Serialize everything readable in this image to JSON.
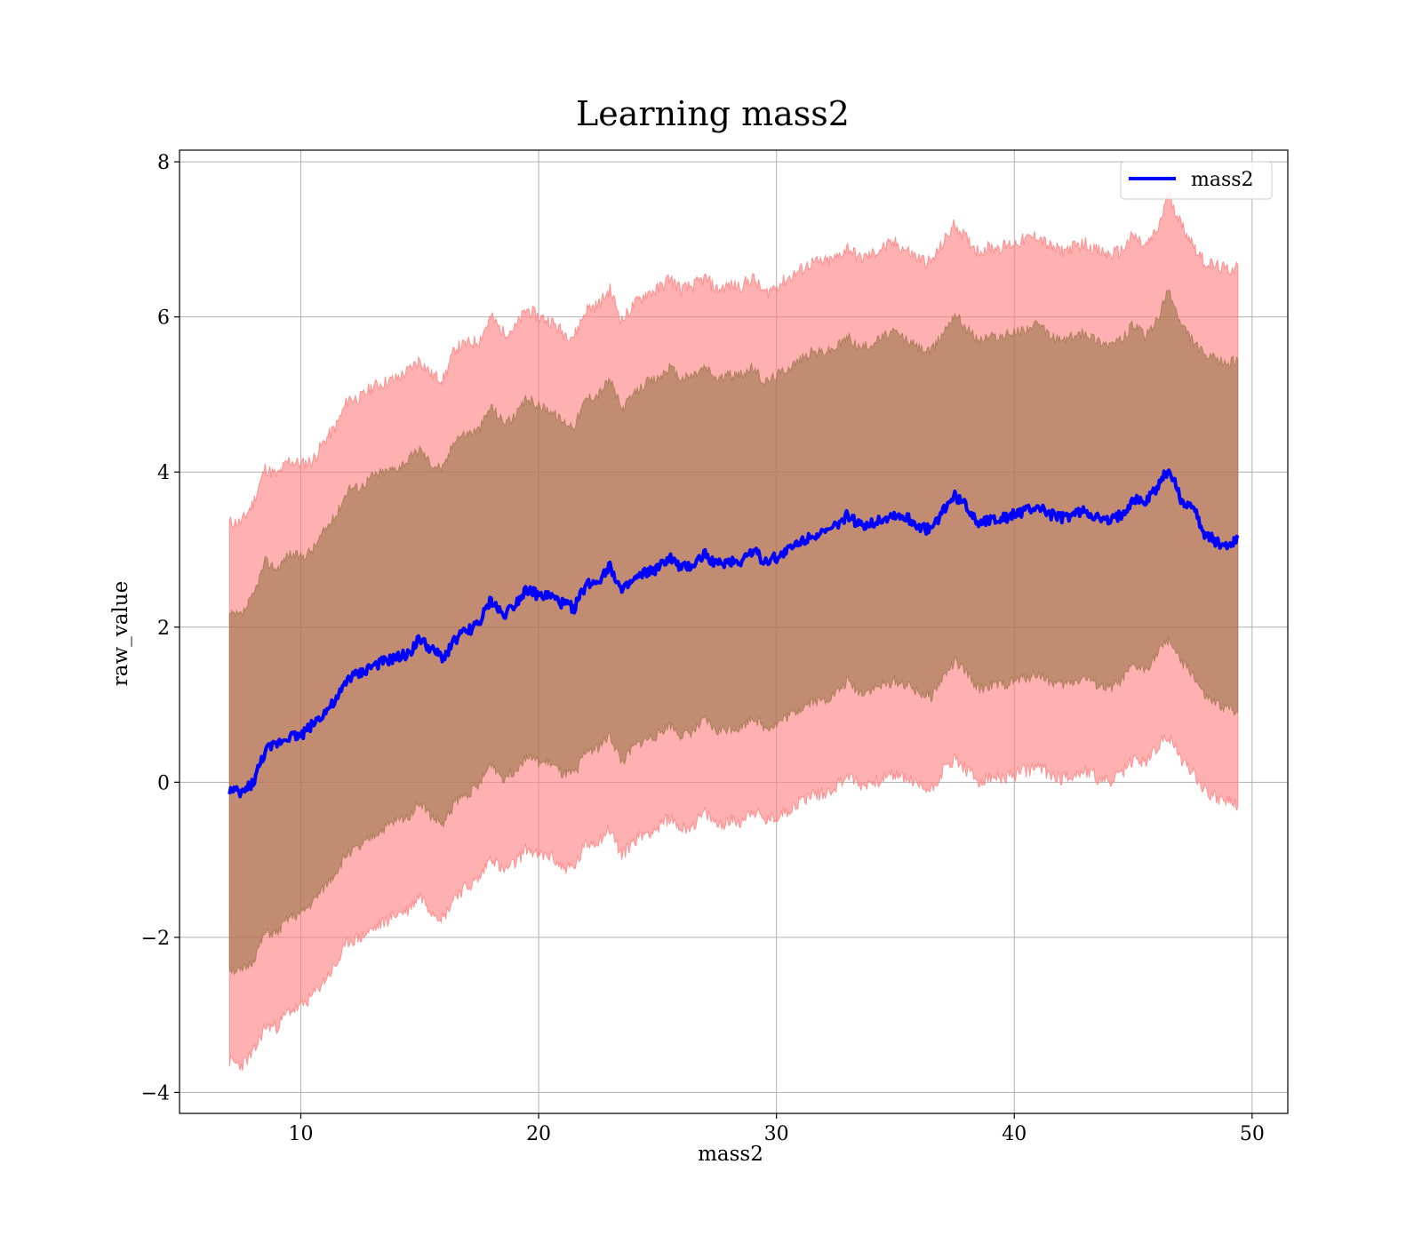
{
  "chart_data": {
    "type": "line",
    "title": "Learning mass2",
    "xlabel": "mass2",
    "ylabel": "raw_value",
    "xlim": [
      4.9,
      51.5
    ],
    "ylim": [
      -4.27,
      8.15
    ],
    "xticks": [
      10,
      20,
      30,
      40,
      50
    ],
    "yticks": [
      -4,
      -2,
      0,
      2,
      4,
      6,
      8
    ],
    "xtick_labels": [
      "10",
      "20",
      "30",
      "40",
      "50"
    ],
    "ytick_labels": [
      "−4",
      "−2",
      "0",
      "2",
      "4",
      "6",
      "8"
    ],
    "grid": true,
    "legend": {
      "position": "upper right",
      "entries": [
        "mass2"
      ]
    },
    "colors": {
      "line": "#0000ff",
      "band_outer": "#ff7f7f",
      "band_inner": "#8f6f3f"
    },
    "series": [
      {
        "name": "mass2",
        "x": [
          7.0,
          7.5,
          8.0,
          8.5,
          9.0,
          9.5,
          10.0,
          10.5,
          11.0,
          11.5,
          12.0,
          12.5,
          13.0,
          13.5,
          14.0,
          14.5,
          15.0,
          15.5,
          16.0,
          16.5,
          17.0,
          17.5,
          18.0,
          18.5,
          19.0,
          19.5,
          20.0,
          20.5,
          21.0,
          21.5,
          22.0,
          22.5,
          23.0,
          23.5,
          24.0,
          24.5,
          25.0,
          25.5,
          26.0,
          26.5,
          27.0,
          27.5,
          28.0,
          28.5,
          29.0,
          29.5,
          30.0,
          30.5,
          31.0,
          31.5,
          32.0,
          32.5,
          33.0,
          33.5,
          34.0,
          34.5,
          35.0,
          35.5,
          36.0,
          36.5,
          37.0,
          37.5,
          38.0,
          38.5,
          39.0,
          39.5,
          40.0,
          40.5,
          41.0,
          41.5,
          42.0,
          42.5,
          43.0,
          43.5,
          44.0,
          44.5,
          45.0,
          45.5,
          46.0,
          46.5,
          47.0,
          47.5,
          48.0,
          48.5,
          49.0,
          49.4
        ],
        "values": [
          -0.1,
          -0.15,
          0.0,
          0.4,
          0.5,
          0.6,
          0.6,
          0.75,
          0.9,
          1.05,
          1.35,
          1.4,
          1.5,
          1.55,
          1.6,
          1.65,
          1.85,
          1.7,
          1.6,
          1.85,
          1.95,
          2.05,
          2.35,
          2.15,
          2.3,
          2.5,
          2.4,
          2.4,
          2.3,
          2.25,
          2.55,
          2.6,
          2.8,
          2.45,
          2.6,
          2.7,
          2.75,
          2.9,
          2.75,
          2.8,
          2.95,
          2.8,
          2.85,
          2.85,
          3.0,
          2.85,
          2.9,
          3.0,
          3.1,
          3.2,
          3.2,
          3.3,
          3.45,
          3.3,
          3.35,
          3.4,
          3.45,
          3.4,
          3.3,
          3.25,
          3.5,
          3.7,
          3.55,
          3.35,
          3.4,
          3.4,
          3.45,
          3.5,
          3.55,
          3.45,
          3.4,
          3.45,
          3.5,
          3.4,
          3.35,
          3.45,
          3.65,
          3.6,
          3.8,
          4.05,
          3.65,
          3.55,
          3.2,
          3.1,
          3.05,
          3.15
        ],
        "outer_upper": [
          3.35,
          3.35,
          3.6,
          4.05,
          3.95,
          4.15,
          4.1,
          4.15,
          4.4,
          4.6,
          4.95,
          4.95,
          5.1,
          5.15,
          5.2,
          5.3,
          5.45,
          5.25,
          5.2,
          5.6,
          5.65,
          5.7,
          6.0,
          5.8,
          5.85,
          6.1,
          6.0,
          5.95,
          5.8,
          5.75,
          6.1,
          6.15,
          6.35,
          5.95,
          6.15,
          6.3,
          6.35,
          6.5,
          6.35,
          6.4,
          6.5,
          6.35,
          6.4,
          6.4,
          6.5,
          6.3,
          6.4,
          6.5,
          6.6,
          6.7,
          6.7,
          6.75,
          6.9,
          6.75,
          6.8,
          6.9,
          6.95,
          6.85,
          6.75,
          6.7,
          6.95,
          7.2,
          7.0,
          6.85,
          6.9,
          6.9,
          6.95,
          7.0,
          7.05,
          6.9,
          6.85,
          6.9,
          6.95,
          6.85,
          6.8,
          6.85,
          7.05,
          6.9,
          7.1,
          7.6,
          7.2,
          6.95,
          6.7,
          6.65,
          6.6,
          6.65
        ],
        "inner_upper": [
          2.15,
          2.15,
          2.4,
          2.85,
          2.75,
          2.95,
          2.9,
          3.0,
          3.25,
          3.45,
          3.8,
          3.8,
          3.95,
          4.0,
          4.05,
          4.15,
          4.3,
          4.1,
          4.05,
          4.45,
          4.5,
          4.55,
          4.85,
          4.65,
          4.7,
          4.95,
          4.85,
          4.8,
          4.65,
          4.6,
          4.95,
          5.0,
          5.2,
          4.8,
          5.0,
          5.15,
          5.2,
          5.35,
          5.2,
          5.25,
          5.35,
          5.2,
          5.25,
          5.25,
          5.35,
          5.15,
          5.25,
          5.35,
          5.45,
          5.55,
          5.55,
          5.6,
          5.75,
          5.6,
          5.65,
          5.75,
          5.8,
          5.7,
          5.6,
          5.55,
          5.8,
          6.05,
          5.85,
          5.7,
          5.75,
          5.75,
          5.8,
          5.85,
          5.9,
          5.75,
          5.7,
          5.75,
          5.8,
          5.7,
          5.65,
          5.7,
          5.9,
          5.75,
          5.95,
          6.35,
          5.9,
          5.7,
          5.5,
          5.45,
          5.4,
          5.45
        ],
        "inner_lower": [
          -2.4,
          -2.45,
          -2.3,
          -1.95,
          -1.95,
          -1.75,
          -1.7,
          -1.55,
          -1.35,
          -1.15,
          -0.9,
          -0.85,
          -0.7,
          -0.6,
          -0.5,
          -0.45,
          -0.25,
          -0.45,
          -0.55,
          -0.25,
          -0.15,
          -0.05,
          0.25,
          0.05,
          0.15,
          0.35,
          0.25,
          0.25,
          0.1,
          0.1,
          0.4,
          0.45,
          0.6,
          0.25,
          0.45,
          0.55,
          0.6,
          0.75,
          0.6,
          0.65,
          0.8,
          0.65,
          0.7,
          0.7,
          0.85,
          0.7,
          0.75,
          0.85,
          0.95,
          1.05,
          1.05,
          1.15,
          1.3,
          1.15,
          1.2,
          1.25,
          1.3,
          1.25,
          1.15,
          1.1,
          1.35,
          1.55,
          1.4,
          1.2,
          1.25,
          1.25,
          1.3,
          1.35,
          1.4,
          1.3,
          1.25,
          1.3,
          1.35,
          1.25,
          1.2,
          1.3,
          1.5,
          1.45,
          1.65,
          1.85,
          1.55,
          1.4,
          1.1,
          1.0,
          0.95,
          0.9
        ],
        "outer_lower": [
          -3.6,
          -3.65,
          -3.5,
          -3.15,
          -3.15,
          -2.95,
          -2.9,
          -2.75,
          -2.55,
          -2.35,
          -2.05,
          -2.0,
          -1.9,
          -1.8,
          -1.7,
          -1.65,
          -1.45,
          -1.65,
          -1.75,
          -1.45,
          -1.35,
          -1.25,
          -0.95,
          -1.15,
          -1.05,
          -0.85,
          -0.95,
          -0.95,
          -1.1,
          -1.1,
          -0.8,
          -0.75,
          -0.6,
          -0.95,
          -0.75,
          -0.65,
          -0.6,
          -0.45,
          -0.6,
          -0.55,
          -0.4,
          -0.55,
          -0.5,
          -0.5,
          -0.35,
          -0.5,
          -0.45,
          -0.35,
          -0.25,
          -0.15,
          -0.15,
          -0.05,
          0.1,
          -0.05,
          0.0,
          0.05,
          0.1,
          0.05,
          -0.05,
          -0.1,
          0.15,
          0.3,
          0.15,
          0.0,
          0.05,
          0.05,
          0.1,
          0.15,
          0.2,
          0.1,
          0.05,
          0.1,
          0.15,
          0.05,
          0.0,
          0.1,
          0.3,
          0.25,
          0.45,
          0.6,
          0.3,
          0.15,
          -0.1,
          -0.2,
          -0.25,
          -0.3
        ]
      }
    ]
  }
}
